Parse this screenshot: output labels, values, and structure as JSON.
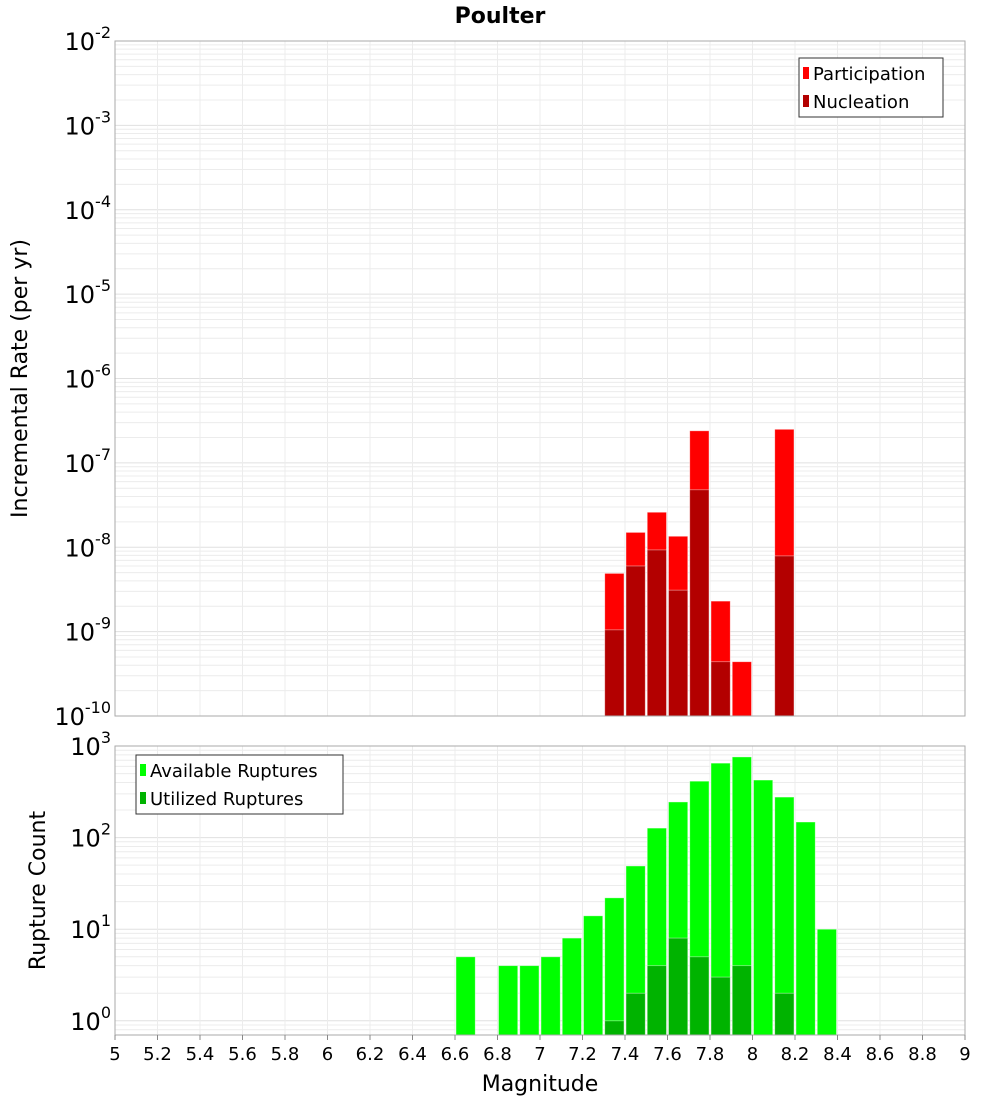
{
  "chart_data": [
    {
      "type": "bar",
      "title": "Poulter",
      "xlabel": "",
      "ylabel": "Incremental Rate (per yr)",
      "yscale": "log",
      "ylim": [
        1e-10,
        0.01
      ],
      "xlim": [
        5,
        9
      ],
      "ytick_base": "10",
      "ytick_exponents": [
        "-2",
        "-3",
        "-4",
        "-5",
        "-6",
        "-7",
        "-8",
        "-9",
        "-10"
      ],
      "grid": true,
      "legend_position": "top-right",
      "bin_width": 0.1,
      "x": [
        7.35,
        7.45,
        7.55,
        7.65,
        7.75,
        7.85,
        7.95,
        8.15
      ],
      "series": [
        {
          "name": "Participation",
          "color": "#ff0000",
          "values": [
            4.9e-09,
            1.5e-08,
            2.6e-08,
            1.35e-08,
            2.4e-07,
            2.3e-09,
            4.4e-10,
            2.5e-07
          ]
        },
        {
          "name": "Nucleation",
          "color": "#b30000",
          "values": [
            1.05e-09,
            6e-09,
            9.3e-09,
            3.1e-09,
            4.8e-08,
            4.4e-10,
            null,
            7.9e-09
          ]
        }
      ]
    },
    {
      "type": "bar",
      "title": "",
      "xlabel": "Magnitude",
      "ylabel": "Rupture Count",
      "yscale": "log",
      "ylim": [
        0.7,
        1000
      ],
      "xlim": [
        5,
        9
      ],
      "ytick_base": "10",
      "ytick_exponents": [
        "3",
        "2",
        "1",
        "0"
      ],
      "xticks": [
        "5",
        "5.2",
        "5.4",
        "5.6",
        "5.8",
        "6",
        "6.2",
        "6.4",
        "6.6",
        "6.8",
        "7",
        "7.2",
        "7.4",
        "7.6",
        "7.8",
        "8",
        "8.2",
        "8.4",
        "8.6",
        "8.8",
        "9"
      ],
      "grid": true,
      "legend_position": "top-left",
      "bin_width": 0.1,
      "x": [
        6.65,
        6.85,
        6.95,
        7.05,
        7.15,
        7.25,
        7.35,
        7.45,
        7.55,
        7.65,
        7.75,
        7.85,
        7.95,
        8.05,
        8.15,
        8.25,
        8.35
      ],
      "series": [
        {
          "name": "Available Ruptures",
          "color": "#00ff00",
          "values": [
            5,
            4,
            4,
            5,
            8,
            14,
            22,
            49,
            127,
            245,
            413,
            650,
            760,
            425,
            277,
            148,
            10
          ]
        },
        {
          "name": "Utilized Ruptures",
          "color": "#00b300",
          "values": [
            null,
            null,
            null,
            null,
            null,
            null,
            1,
            2,
            4,
            8,
            5,
            3,
            4,
            null,
            2,
            null,
            null
          ]
        }
      ]
    }
  ]
}
